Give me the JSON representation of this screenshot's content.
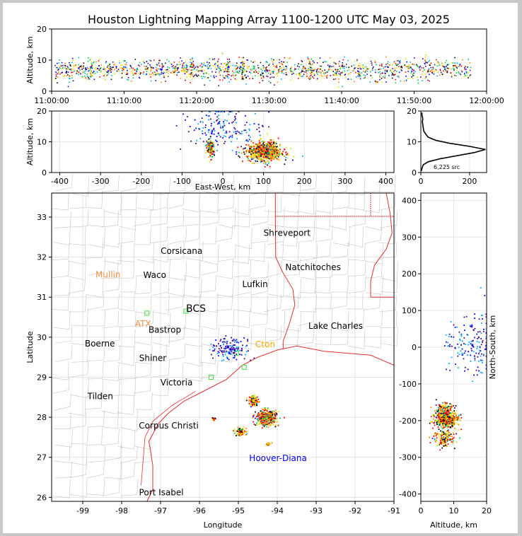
{
  "title": "Houston Lightning Mapping Array 1100-1200 UTC May 03, 2025",
  "chart_data": [
    {
      "type": "scatter",
      "panel": "altitude-vs-time",
      "ylabel": "Altitude, km",
      "xlabel": "",
      "xticks": [
        "11:00:00",
        "11:10:00",
        "11:20:00",
        "11:30:00",
        "11:40:00",
        "11:50:00",
        "12:00:00"
      ],
      "xlim_minutes": [
        0,
        60
      ],
      "ylim": [
        0,
        20
      ],
      "yticks": [
        0,
        10,
        20
      ],
      "grid": false,
      "colormap": "time (purple to red)"
    },
    {
      "type": "scatter",
      "panel": "altitude-vs-east-west",
      "xlabel": "East-West, km",
      "ylabel": "Altitude, km",
      "xlim": [
        -420,
        420
      ],
      "xticks": [
        -400,
        -300,
        -200,
        -100,
        0,
        100,
        200,
        300,
        400
      ],
      "ylim": [
        0,
        20
      ],
      "yticks": [
        0,
        10,
        20
      ],
      "grid": true,
      "clusters": [
        {
          "x": -30,
          "alt": 8,
          "density": "medium"
        },
        {
          "x": 100,
          "alt": 7,
          "density": "high"
        },
        {
          "x": 0,
          "alt": 15,
          "density": "sparse"
        }
      ]
    },
    {
      "type": "line",
      "panel": "altitude-histogram",
      "xlim": [
        0,
        270
      ],
      "xticks": [
        0,
        200
      ],
      "ylim": [
        0,
        20
      ],
      "yticks": [
        0,
        10,
        20
      ],
      "annotation": "6,225 src",
      "profile": [
        {
          "alt": 0.5,
          "count": 2
        },
        {
          "alt": 1.5,
          "count": 5
        },
        {
          "alt": 2.5,
          "count": 10
        },
        {
          "alt": 3.5,
          "count": 30
        },
        {
          "alt": 4.5,
          "count": 80
        },
        {
          "alt": 5.5,
          "count": 150
        },
        {
          "alt": 6.5,
          "count": 220
        },
        {
          "alt": 7.5,
          "count": 265
        },
        {
          "alt": 8.5,
          "count": 200
        },
        {
          "alt": 9.5,
          "count": 120
        },
        {
          "alt": 10.5,
          "count": 60
        },
        {
          "alt": 11.5,
          "count": 30
        },
        {
          "alt": 12.5,
          "count": 20
        },
        {
          "alt": 13.5,
          "count": 12
        },
        {
          "alt": 14.5,
          "count": 10
        },
        {
          "alt": 15.5,
          "count": 8
        },
        {
          "alt": 16.5,
          "count": 6
        },
        {
          "alt": 17.5,
          "count": 8
        },
        {
          "alt": 18.5,
          "count": 5
        },
        {
          "alt": 19.5,
          "count": 4
        }
      ]
    },
    {
      "type": "scatter",
      "panel": "plan-view-map",
      "xlabel": "Longitude",
      "ylabel": "Latitude",
      "xlim": [
        -99.8,
        -91
      ],
      "xticks": [
        -99,
        -98,
        -97,
        -96,
        -95,
        -94,
        -93,
        -92,
        -91
      ],
      "ylim": [
        25.9,
        33.6
      ],
      "yticks": [
        26,
        27,
        28,
        29,
        30,
        31,
        32,
        33
      ],
      "grid": true,
      "places": [
        {
          "name": "Shreveport",
          "lon": -93.75,
          "lat": 32.6,
          "color": "#000000"
        },
        {
          "name": "Corsicana",
          "lon": -96.46,
          "lat": 32.15,
          "color": "#000000"
        },
        {
          "name": "Natchitoches",
          "lon": -93.08,
          "lat": 31.75,
          "color": "#000000"
        },
        {
          "name": "Mullin",
          "lon": -98.35,
          "lat": 31.56,
          "color": "#ff8c40"
        },
        {
          "name": "Waco",
          "lon": -97.15,
          "lat": 31.55,
          "color": "#000000"
        },
        {
          "name": "Lufkin",
          "lon": -94.57,
          "lat": 31.32,
          "color": "#000000"
        },
        {
          "name": "BCS",
          "lon": -96.09,
          "lat": 30.7,
          "color": "#000000"
        },
        {
          "name": "ATX",
          "lon": -97.45,
          "lat": 30.33,
          "color": "#ff8c40"
        },
        {
          "name": "Lake Charles",
          "lon": -92.5,
          "lat": 30.28,
          "color": "#000000"
        },
        {
          "name": "Bastrop",
          "lon": -96.89,
          "lat": 30.18,
          "color": "#000000"
        },
        {
          "name": "Boerne",
          "lon": -98.56,
          "lat": 29.84,
          "color": "#000000"
        },
        {
          "name": "Cton",
          "lon": -94.31,
          "lat": 29.82,
          "color": "#ffa500"
        },
        {
          "name": "Shiner",
          "lon": -97.2,
          "lat": 29.48,
          "color": "#000000"
        },
        {
          "name": "Victoria",
          "lon": -96.59,
          "lat": 28.87,
          "color": "#000000"
        },
        {
          "name": "Tilden",
          "lon": -98.55,
          "lat": 28.52,
          "color": "#000000"
        },
        {
          "name": "Corpus Christi",
          "lon": -96.79,
          "lat": 27.79,
          "color": "#000000"
        },
        {
          "name": "Hoover-Diana",
          "lon": -93.98,
          "lat": 26.98,
          "color": "#0000ee"
        },
        {
          "name": "Port Isabel",
          "lon": -96.98,
          "lat": 26.12,
          "color": "#000000"
        }
      ],
      "clusters": [
        {
          "lon": -94.3,
          "lat": 28.0,
          "density": "high"
        },
        {
          "lon": -94.62,
          "lat": 28.42,
          "density": "medium"
        },
        {
          "lon": -94.95,
          "lat": 27.65,
          "density": "medium"
        },
        {
          "lon": -95.65,
          "lat": 27.98,
          "density": "low"
        },
        {
          "lon": -94.25,
          "lat": 27.35,
          "density": "low"
        },
        {
          "lon": -95.25,
          "lat": 29.75,
          "density": "sparse"
        }
      ]
    },
    {
      "type": "scatter",
      "panel": "north-south-vs-altitude",
      "xlabel": "Altitude, km",
      "ylabel": "North-South, km",
      "xlim": [
        0,
        20
      ],
      "xticks": [
        0,
        10,
        20
      ],
      "ylim": [
        -420,
        420
      ],
      "yticks": [
        -400,
        -300,
        -200,
        -100,
        0,
        100,
        200,
        300,
        400
      ],
      "grid": true,
      "clusters": [
        {
          "alt": 7.5,
          "y": -195,
          "density": "high"
        },
        {
          "alt": 7,
          "y": -170,
          "density": "medium"
        },
        {
          "alt": 7,
          "y": -245,
          "density": "medium"
        },
        {
          "alt": 15,
          "y": 10,
          "density": "sparse"
        }
      ]
    }
  ]
}
